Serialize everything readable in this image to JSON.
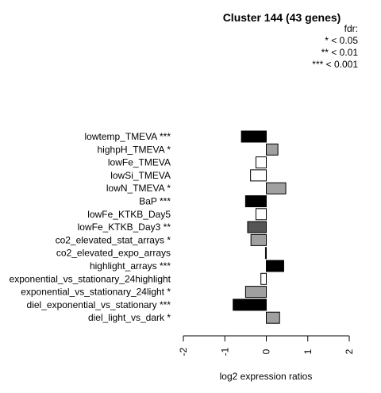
{
  "chart_data": {
    "type": "bar",
    "orientation": "horizontal",
    "title": "Cluster 144 (43 genes)",
    "xlabel": "log2 expression ratios",
    "ylabel": "",
    "xlim": [
      -2,
      2
    ],
    "x_ticks": [
      "-2",
      "-1",
      "0",
      "1",
      "2"
    ],
    "legend": {
      "title": "fdr:",
      "entries": [
        "* < 0.05",
        "** < 0.01",
        "*** < 0.001"
      ],
      "placement": "top-right"
    },
    "categories": [
      "lowtemp_TMEVA ***",
      "highpH_TMEVA *",
      "lowFe_TMEVA",
      "lowSi_TMEVA",
      "lowN_TMEVA *",
      "BaP ***",
      "lowFe_KTKB_Day5",
      "lowFe_KTKB_Day3 **",
      "co2_elevated_stat_arrays *",
      "co2_elevated_expo_arrays",
      "highlight_arrays ***",
      "exponential_vs_stationary_24highlight",
      "exponential_vs_stationary_24light *",
      "diel_exponential_vs_stationary ***",
      "diel_light_vs_dark *"
    ],
    "values": [
      -0.6,
      0.28,
      -0.25,
      -0.38,
      0.47,
      -0.5,
      -0.25,
      -0.45,
      -0.37,
      -0.02,
      0.42,
      -0.13,
      -0.5,
      -0.8,
      0.32
    ],
    "colors": [
      "#000000",
      "#a0a0a0",
      "#ffffff",
      "#ffffff",
      "#a0a0a0",
      "#000000",
      "#ffffff",
      "#555555",
      "#a0a0a0",
      "#ffffff",
      "#000000",
      "#ffffff",
      "#a0a0a0",
      "#000000",
      "#a0a0a0"
    ]
  }
}
